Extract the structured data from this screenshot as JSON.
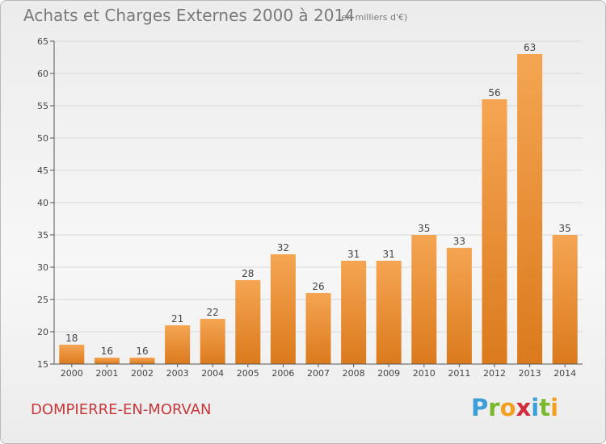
{
  "title": "Achats et Charges Externes 2000 à 2014",
  "subtitle": "(en milliers d'€)",
  "commune": "DOMPIERRE-EN-MORVAN",
  "brand": {
    "letters": [
      "P",
      "r",
      "o",
      "x",
      "i",
      "t",
      "i"
    ],
    "colors": [
      "#3b9fd9",
      "#7ab82e",
      "#f2a020",
      "#d12b3c",
      "#3b9fd9",
      "#7ab82e",
      "#f2a020"
    ]
  },
  "colors": {
    "bar_top": "#f5a552",
    "bar_bottom": "#db7a1d",
    "axis": "#555555",
    "grid": "#d8d8d8",
    "text": "#444444"
  },
  "chart_data": {
    "type": "bar",
    "categories": [
      "2000",
      "2001",
      "2002",
      "2003",
      "2004",
      "2005",
      "2006",
      "2007",
      "2008",
      "2009",
      "2010",
      "2011",
      "2012",
      "2013",
      "2014"
    ],
    "values": [
      18,
      16,
      16,
      21,
      22,
      28,
      32,
      26,
      31,
      31,
      35,
      33,
      56,
      63,
      35
    ],
    "ylim": [
      15,
      65
    ],
    "yticks": [
      15,
      20,
      25,
      30,
      35,
      40,
      45,
      50,
      55,
      60,
      65
    ],
    "grid": true,
    "data_labels": true
  }
}
